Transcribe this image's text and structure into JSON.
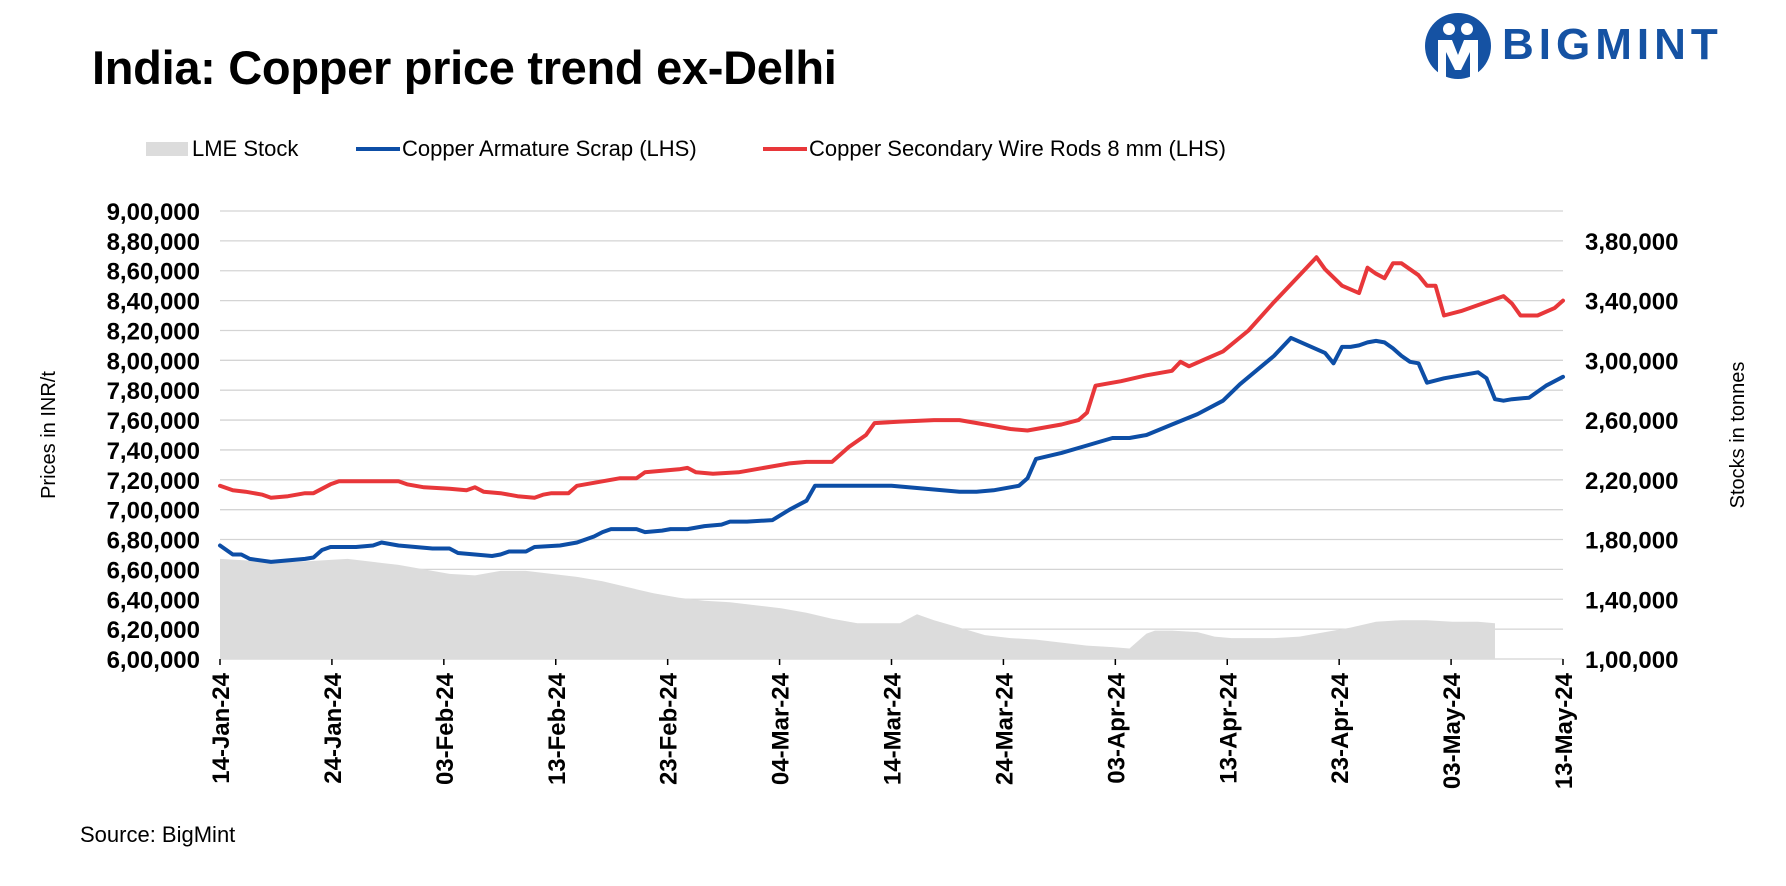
{
  "title": "India: Copper price trend ex-Delhi",
  "logo": {
    "text": "BIGMINT",
    "color": "#1552a3"
  },
  "source": "Source: BigMint",
  "colors": {
    "stock": "#dcdcdc",
    "scrap": "#0d4ea6",
    "rods": "#e8373a",
    "grid": "#d4d4d4"
  },
  "chart_data": {
    "type": "line",
    "ylabel": "Prices in INR/t",
    "y2label": "Stocks in tonnes",
    "ylim": [
      600000,
      900000
    ],
    "y2lim": [
      100000,
      400000
    ],
    "yticks": [
      "9,00,000",
      "8,80,000",
      "8,60,000",
      "8,40,000",
      "8,20,000",
      "8,00,000",
      "7,80,000",
      "7,60,000",
      "7,40,000",
      "7,20,000",
      "7,00,000",
      "6,80,000",
      "6,60,000",
      "6,40,000",
      "6,20,000",
      "6,00,000"
    ],
    "y2ticks": [
      "3,80,000",
      "3,40,000",
      "3,00,000",
      "2,60,000",
      "2,20,000",
      "1,80,000",
      "1,40,000",
      "1,00,000"
    ],
    "xticks": [
      "14-Jan-24",
      "24-Jan-24",
      "03-Feb-24",
      "13-Feb-24",
      "23-Feb-24",
      "04-Mar-24",
      "14-Mar-24",
      "24-Mar-24",
      "03-Apr-24",
      "13-Apr-24",
      "23-Apr-24",
      "03-May-24",
      "13-May-24"
    ],
    "x_range_days": [
      0,
      120
    ],
    "legend": [
      "LME Stock",
      "Copper Armature Scrap (LHS)",
      "Copper Secondary Wire Rods 8 mm (LHS)"
    ],
    "series": [
      {
        "name": "LME Stock",
        "axis": "right",
        "kind": "area",
        "points": [
          [
            0,
            167000
          ],
          [
            3,
            166000
          ],
          [
            6,
            165000
          ],
          [
            9,
            165000
          ],
          [
            12,
            166000
          ],
          [
            15,
            167000
          ],
          [
            18,
            165000
          ],
          [
            21,
            163000
          ],
          [
            24,
            160000
          ],
          [
            27,
            157000
          ],
          [
            30,
            156000
          ],
          [
            33,
            159000
          ],
          [
            36,
            159000
          ],
          [
            39,
            157000
          ],
          [
            42,
            155000
          ],
          [
            45,
            152000
          ],
          [
            48,
            148000
          ],
          [
            51,
            144000
          ],
          [
            54,
            141000
          ],
          [
            57,
            139000
          ],
          [
            60,
            138000
          ],
          [
            63,
            136000
          ],
          [
            66,
            134000
          ],
          [
            69,
            131000
          ],
          [
            72,
            127000
          ],
          [
            75,
            124000
          ],
          [
            78,
            124000
          ],
          [
            80,
            124000
          ],
          [
            82,
            130000
          ],
          [
            84,
            126000
          ],
          [
            87,
            121000
          ],
          [
            90,
            116000
          ],
          [
            93,
            114000
          ],
          [
            96,
            113000
          ],
          [
            99,
            111000
          ],
          [
            102,
            109000
          ],
          [
            105,
            108000
          ],
          [
            107,
            107000
          ],
          [
            109,
            117000
          ],
          [
            110,
            119000
          ],
          [
            112,
            119000
          ],
          [
            115,
            118000
          ],
          [
            117,
            115000
          ],
          [
            119,
            114000
          ],
          [
            122,
            114000
          ],
          [
            124,
            114000
          ],
          [
            127,
            115000
          ],
          [
            130,
            118000
          ],
          [
            133,
            121000
          ],
          [
            136,
            125000
          ],
          [
            139,
            126000
          ],
          [
            142,
            126000
          ],
          [
            145,
            125000
          ],
          [
            148,
            125000
          ],
          [
            150,
            124000
          ]
        ]
      },
      {
        "name": "Copper Armature Scrap (LHS)",
        "axis": "left",
        "kind": "line",
        "points": [
          [
            0,
            676000
          ],
          [
            1.5,
            670000
          ],
          [
            2.5,
            670000
          ],
          [
            3.5,
            667000
          ],
          [
            6,
            665000
          ],
          [
            8,
            666000
          ],
          [
            10,
            667000
          ],
          [
            11,
            668000
          ],
          [
            12,
            673000
          ],
          [
            13,
            675000
          ],
          [
            16,
            675000
          ],
          [
            18,
            676000
          ],
          [
            19,
            678000
          ],
          [
            21,
            676000
          ],
          [
            23,
            675000
          ],
          [
            25,
            674000
          ],
          [
            27,
            674000
          ],
          [
            28,
            671000
          ],
          [
            30,
            670000
          ],
          [
            32,
            669000
          ],
          [
            33,
            670000
          ],
          [
            34,
            672000
          ],
          [
            36,
            672000
          ],
          [
            37,
            675000
          ],
          [
            40,
            676000
          ],
          [
            42,
            678000
          ],
          [
            44,
            682000
          ],
          [
            45,
            685000
          ],
          [
            46,
            687000
          ],
          [
            49,
            687000
          ],
          [
            50,
            685000
          ],
          [
            52,
            686000
          ],
          [
            53,
            687000
          ],
          [
            55,
            687000
          ],
          [
            57,
            689000
          ],
          [
            59,
            690000
          ],
          [
            60,
            692000
          ],
          [
            62,
            692000
          ],
          [
            65,
            693000
          ],
          [
            67,
            700000
          ],
          [
            69,
            706000
          ],
          [
            70,
            716000
          ],
          [
            72,
            716000
          ],
          [
            75,
            716000
          ],
          [
            79,
            716000
          ],
          [
            83,
            714000
          ],
          [
            87,
            712000
          ],
          [
            89,
            712000
          ],
          [
            91,
            713000
          ],
          [
            94,
            716000
          ],
          [
            95,
            721000
          ],
          [
            96,
            734000
          ],
          [
            99,
            738000
          ],
          [
            102,
            743000
          ],
          [
            105,
            748000
          ],
          [
            107,
            748000
          ],
          [
            109,
            750000
          ],
          [
            112,
            757000
          ],
          [
            115,
            764000
          ],
          [
            118,
            773000
          ],
          [
            120,
            784000
          ],
          [
            124,
            803000
          ],
          [
            126,
            815000
          ],
          [
            128,
            810000
          ],
          [
            130,
            805000
          ],
          [
            131,
            798000
          ],
          [
            132,
            809000
          ],
          [
            133,
            809000
          ],
          [
            134,
            810000
          ],
          [
            135,
            812000
          ],
          [
            136,
            813000
          ],
          [
            137,
            812000
          ],
          [
            138,
            808000
          ],
          [
            139,
            803000
          ],
          [
            140,
            799000
          ],
          [
            141,
            798000
          ],
          [
            142,
            785000
          ],
          [
            144,
            788000
          ],
          [
            146,
            790000
          ],
          [
            148,
            792000
          ],
          [
            149,
            788000
          ],
          [
            150,
            774000
          ],
          [
            151,
            773000
          ],
          [
            152,
            774000
          ],
          [
            154,
            775000
          ],
          [
            156,
            783000
          ],
          [
            158,
            789000
          ]
        ]
      },
      {
        "name": "Copper Secondary Wire Rods 8 mm (LHS)",
        "axis": "left",
        "kind": "line",
        "points": [
          [
            0,
            716000
          ],
          [
            1.5,
            713000
          ],
          [
            3,
            712000
          ],
          [
            5,
            710000
          ],
          [
            6,
            708000
          ],
          [
            8,
            709000
          ],
          [
            10,
            711000
          ],
          [
            11,
            711000
          ],
          [
            13,
            717000
          ],
          [
            14,
            719000
          ],
          [
            17,
            719000
          ],
          [
            19,
            719000
          ],
          [
            21,
            719000
          ],
          [
            22,
            717000
          ],
          [
            24,
            715000
          ],
          [
            27,
            714000
          ],
          [
            29,
            713000
          ],
          [
            30,
            715000
          ],
          [
            31,
            712000
          ],
          [
            33,
            711000
          ],
          [
            35,
            709000
          ],
          [
            37,
            708000
          ],
          [
            38,
            710000
          ],
          [
            39,
            711000
          ],
          [
            41,
            711000
          ],
          [
            42,
            716000
          ],
          [
            44,
            718000
          ],
          [
            47,
            721000
          ],
          [
            49,
            721000
          ],
          [
            50,
            725000
          ],
          [
            52,
            726000
          ],
          [
            54,
            727000
          ],
          [
            55,
            728000
          ],
          [
            56,
            725000
          ],
          [
            58,
            724000
          ],
          [
            61,
            725000
          ],
          [
            63,
            727000
          ],
          [
            66,
            730000
          ],
          [
            67,
            731000
          ],
          [
            69,
            732000
          ],
          [
            72,
            732000
          ],
          [
            74,
            742000
          ],
          [
            76,
            750000
          ],
          [
            77,
            758000
          ],
          [
            80,
            759000
          ],
          [
            84,
            760000
          ],
          [
            87,
            760000
          ],
          [
            90,
            757000
          ],
          [
            93,
            754000
          ],
          [
            95,
            753000
          ],
          [
            97,
            755000
          ],
          [
            99,
            757000
          ],
          [
            101,
            760000
          ],
          [
            102,
            765000
          ],
          [
            103,
            783000
          ],
          [
            106,
            786000
          ],
          [
            109,
            790000
          ],
          [
            112,
            793000
          ],
          [
            113,
            799000
          ],
          [
            114,
            796000
          ],
          [
            116,
            801000
          ],
          [
            118,
            806000
          ],
          [
            121,
            820000
          ],
          [
            124,
            839000
          ],
          [
            127,
            857000
          ],
          [
            129,
            869000
          ],
          [
            130,
            861000
          ],
          [
            132,
            850000
          ],
          [
            134,
            845000
          ],
          [
            135,
            862000
          ],
          [
            136,
            858000
          ],
          [
            137,
            855000
          ],
          [
            138,
            865000
          ],
          [
            139,
            865000
          ],
          [
            141,
            857000
          ],
          [
            142,
            850000
          ],
          [
            143,
            850000
          ],
          [
            144,
            830000
          ],
          [
            146,
            833000
          ],
          [
            148,
            837000
          ],
          [
            151,
            843000
          ],
          [
            152,
            838000
          ],
          [
            153,
            830000
          ],
          [
            155,
            830000
          ],
          [
            157,
            835000
          ],
          [
            158,
            840000
          ]
        ]
      }
    ]
  }
}
